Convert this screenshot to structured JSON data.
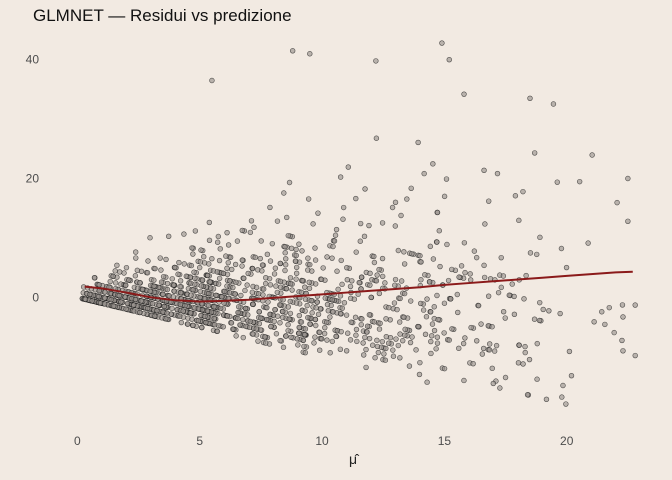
{
  "colors": {
    "background": "#F2EAE2",
    "point_fill": "#9A948F",
    "point_stroke": "#1A1A1A",
    "smooth_line": "#8B1A1A"
  },
  "chart_data": {
    "type": "scatter",
    "title": "GLMNET — Residui vs predizione",
    "xlabel": "μ̂",
    "ylabel": "",
    "xlim": [
      -1.2,
      23.2
    ],
    "ylim": [
      -22,
      45
    ],
    "x_ticks": [
      0,
      5,
      10,
      15,
      20
    ],
    "y_ticks": [
      0,
      20,
      40
    ],
    "grid": false,
    "legend": "none",
    "series": [
      {
        "kind": "points",
        "description_count": 1400,
        "structure": "observed counts y = 0,1,2,... give residual = y − μ̂ bands; lowest band y=0 runs from (0.2, 0.8) to (15.5, −14.5)",
        "sample_points": [
          {
            "x": 5.5,
            "y": 36.5
          },
          {
            "x": 8.8,
            "y": 41.5
          },
          {
            "x": 9.5,
            "y": 41.0
          },
          {
            "x": 12.2,
            "y": 39.8
          },
          {
            "x": 14.9,
            "y": 42.8
          },
          {
            "x": 15.2,
            "y": 40.0
          },
          {
            "x": 18.5,
            "y": 33.5
          },
          {
            "x": 22.5,
            "y": 20.0
          },
          {
            "x": 22.5,
            "y": 12.8
          },
          {
            "x": 22.8,
            "y": -1.3
          },
          {
            "x": 22.3,
            "y": -9.0
          },
          {
            "x": 22.8,
            "y": -9.8
          },
          {
            "x": 19.8,
            "y": -16.8
          },
          {
            "x": 17.0,
            "y": -14.5
          },
          {
            "x": 17.5,
            "y": -13.5
          },
          {
            "x": 15.8,
            "y": -14.0
          }
        ]
      },
      {
        "kind": "smooth",
        "x": [
          0.3,
          1,
          2,
          3,
          4,
          5,
          6,
          7,
          8,
          9,
          10,
          11,
          12,
          13,
          14,
          15,
          16,
          17,
          18,
          19,
          20,
          21,
          22,
          22.7
        ],
        "y": [
          1.8,
          1.5,
          0.8,
          0.0,
          -0.5,
          -0.7,
          -0.6,
          -0.4,
          -0.1,
          0.2,
          0.5,
          0.8,
          1.1,
          1.4,
          1.7,
          2.1,
          2.4,
          2.7,
          3.0,
          3.3,
          3.6,
          3.9,
          4.2,
          4.3
        ]
      }
    ]
  }
}
